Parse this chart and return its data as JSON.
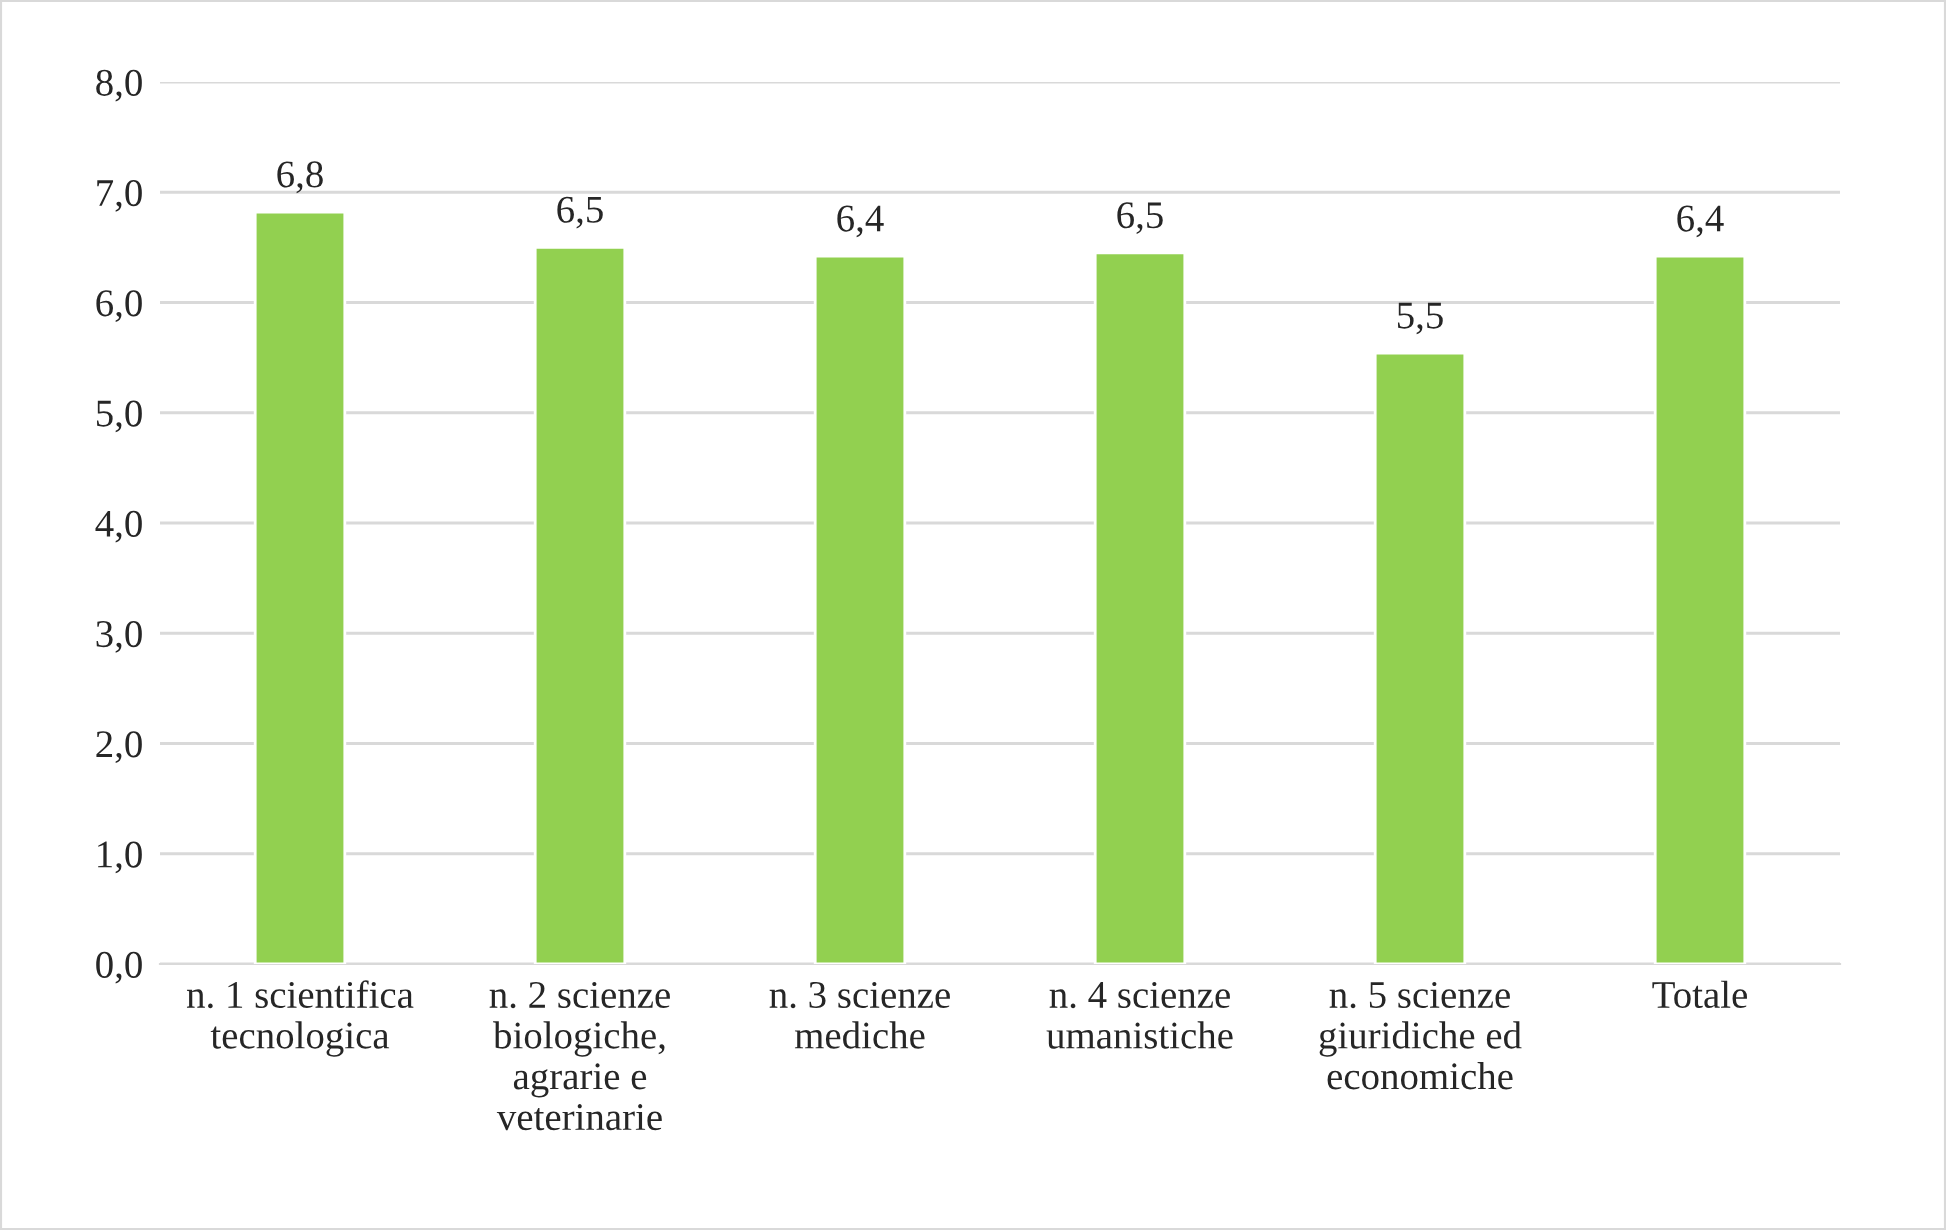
{
  "chart_data": {
    "type": "bar",
    "categories": [
      "n. 1 scientifica\ntecnologica",
      "n. 2 scienze\nbiologiche,\nagrarie e\nveterinarie",
      "n. 3 scienze\nmediche",
      "n. 4 scienze\numanistiche",
      "n. 5 scienze\ngiuridiche ed\neconomiche",
      "Totale"
    ],
    "values": [
      6.82,
      6.5,
      6.42,
      6.45,
      5.54,
      6.42
    ],
    "value_labels": [
      "6,8",
      "6,5",
      "6,4",
      "6,5",
      "5,5",
      "6,4"
    ],
    "color": "#92d050",
    "ylim": [
      0,
      8
    ],
    "yticks": [
      {
        "value": 0,
        "label": "0,0"
      },
      {
        "value": 1,
        "label": "1,0"
      },
      {
        "value": 2,
        "label": "2,0"
      },
      {
        "value": 3,
        "label": "3,0"
      },
      {
        "value": 4,
        "label": "4,0"
      },
      {
        "value": 5,
        "label": "5,0"
      },
      {
        "value": 6,
        "label": "6,0"
      },
      {
        "value": 7,
        "label": "7,0"
      },
      {
        "value": 8,
        "label": "8,0"
      }
    ],
    "grid": "y",
    "legend": false
  }
}
